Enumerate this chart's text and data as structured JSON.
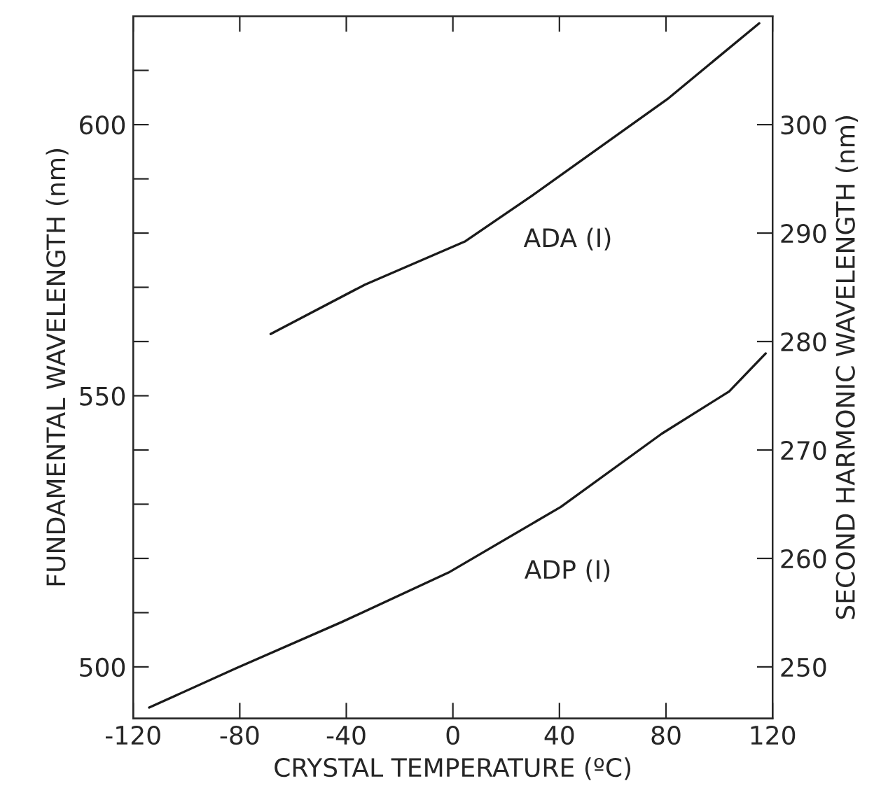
{
  "chart_data": {
    "type": "line",
    "xlabel": "CRYSTAL TEMPERATURE (ºC)",
    "ylabel": "FUNDAMENTAL WAVELENGTH (nm)",
    "y2label": "SECOND HARMONIC WAVELENGTH (nm)",
    "series": [
      {
        "name": "ADA (I)",
        "color": "#1a1a1a",
        "x": [
          -68.4,
          -33,
          4.7,
          30,
          80.5,
          115
        ],
        "values": [
          561.4,
          570.5,
          578.5,
          587,
          604.7,
          618.7
        ]
      },
      {
        "name": "ADP (I)",
        "color": "#1a1a1a",
        "x": [
          -114,
          -81.6,
          -41.6,
          -1.6,
          40.5,
          78.4,
          103.7,
          117.4
        ],
        "values": [
          492.5,
          499.7,
          508.3,
          517.4,
          529.5,
          543,
          550.8,
          557.8
        ]
      }
    ],
    "xlim": [
      -120,
      120
    ],
    "xticks": [
      -120,
      -80,
      -40,
      0,
      40,
      80,
      120
    ],
    "ylim": [
      490.5,
      620
    ],
    "yticks": [
      {
        "value": 500,
        "label": "500"
      },
      {
        "value": 510,
        "label": null
      },
      {
        "value": 520,
        "label": null
      },
      {
        "value": 530,
        "label": null
      },
      {
        "value": 540,
        "label": null
      },
      {
        "value": 550,
        "label": "550"
      },
      {
        "value": 560,
        "label": null
      },
      {
        "value": 570,
        "label": null
      },
      {
        "value": 580,
        "label": null
      },
      {
        "value": 590,
        "label": null
      },
      {
        "value": 600,
        "label": "600"
      },
      {
        "value": 610,
        "label": null
      }
    ],
    "y2lim": [
      245.25,
      310
    ],
    "y2ticks": [
      250,
      260,
      270,
      280,
      290,
      300
    ],
    "grid": false,
    "legend": false,
    "line_style": "solid",
    "marker": "none"
  }
}
